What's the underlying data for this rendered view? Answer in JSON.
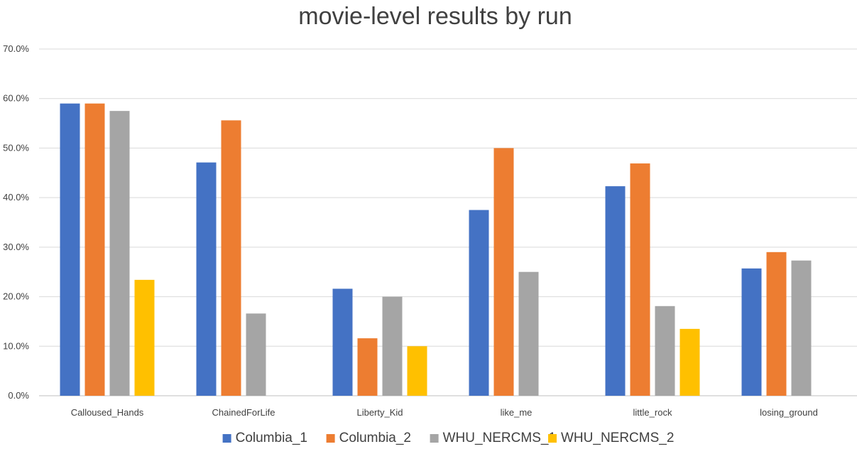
{
  "chart_data": {
    "type": "bar",
    "title": "movie-level results by run",
    "categories": [
      "Calloused_Hands",
      "ChainedForLife",
      "Liberty_Kid",
      "like_me",
      "little_rock",
      "losing_ground"
    ],
    "series": [
      {
        "name": "Columbia_1",
        "color": "#4472c4",
        "values": [
          59.0,
          47.1,
          21.6,
          37.5,
          42.3,
          25.7
        ]
      },
      {
        "name": "Columbia_2",
        "color": "#ed7d31",
        "values": [
          59.0,
          55.6,
          11.6,
          50.0,
          46.9,
          29.0
        ]
      },
      {
        "name": "WHU_NERCMS_1",
        "color": "#a5a5a5",
        "values": [
          57.5,
          16.6,
          20.0,
          25.0,
          18.1,
          27.3
        ]
      },
      {
        "name": "WHU_NERCMS_2",
        "color": "#ffc000",
        "values": [
          23.4,
          null,
          10.0,
          null,
          13.5,
          null
        ]
      }
    ],
    "ylim": [
      0,
      70
    ],
    "yticks": [
      "0.0%",
      "10.0%",
      "20.0%",
      "30.0%",
      "40.0%",
      "50.0%",
      "60.0%",
      "70.0%"
    ],
    "xlabel": "",
    "ylabel": "",
    "grid": true,
    "legend_position": "bottom"
  }
}
